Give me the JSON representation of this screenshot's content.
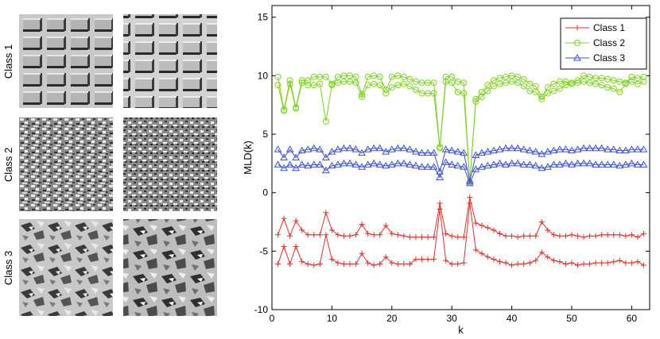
{
  "texture_panel": {
    "rows": [
      {
        "label": "Class 1",
        "pattern": "woven-grid"
      },
      {
        "label": "Class 2",
        "pattern": "fine-granular"
      },
      {
        "label": "Class 3",
        "pattern": "coarse-flakes"
      }
    ]
  },
  "chart_data": {
    "type": "line",
    "title": "",
    "xlabel": "k",
    "ylabel": "MLD(k)",
    "xlim": [
      0,
      63
    ],
    "ylim": [
      -10,
      16
    ],
    "xticks": [
      0,
      10,
      20,
      30,
      40,
      50,
      60
    ],
    "yticks": [
      -10,
      -5,
      0,
      5,
      10,
      15
    ],
    "grid": false,
    "legend_position": "top-right",
    "legend": [
      {
        "label": "Class 1",
        "color": "#e0302a",
        "marker": "plus"
      },
      {
        "label": "Class 2",
        "color": "#7ed321",
        "marker": "circle"
      },
      {
        "label": "Class 3",
        "color": "#3b4fd4",
        "marker": "triangle"
      }
    ],
    "x": [
      1,
      2,
      3,
      4,
      5,
      6,
      7,
      8,
      9,
      10,
      11,
      12,
      13,
      14,
      15,
      16,
      17,
      18,
      19,
      20,
      21,
      22,
      23,
      24,
      25,
      26,
      27,
      28,
      29,
      30,
      31,
      32,
      33,
      34,
      35,
      36,
      37,
      38,
      39,
      40,
      41,
      42,
      43,
      44,
      45,
      46,
      47,
      48,
      49,
      50,
      51,
      52,
      53,
      54,
      55,
      56,
      57,
      58,
      59,
      60,
      61,
      62
    ],
    "series": [
      {
        "name": "Class 1",
        "color": "#e0302a",
        "marker": "plus",
        "values": [
          -3.6,
          -2.2,
          -3.7,
          -2.4,
          -3.2,
          -3.6,
          -3.6,
          -3.6,
          -1.7,
          -3.2,
          -3.6,
          -3.7,
          -3.7,
          -3.6,
          -2.7,
          -3.5,
          -3.6,
          -3.6,
          -2.8,
          -3.5,
          -3.6,
          -3.7,
          -3.8,
          -3.8,
          -3.8,
          -3.8,
          -3.8,
          -0.9,
          -3.5,
          -3.7,
          -3.8,
          -3.8,
          -0.4,
          -2.6,
          -2.8,
          -3.0,
          -3.2,
          -3.5,
          -3.7,
          -3.7,
          -3.8,
          -3.7,
          -3.7,
          -3.7,
          -2.5,
          -3.2,
          -3.6,
          -3.7,
          -3.7,
          -3.6,
          -3.7,
          -3.8,
          -3.7,
          -3.7,
          -3.6,
          -3.6,
          -3.6,
          -3.6,
          -3.7,
          -3.6,
          -3.8,
          -3.5
        ]
      },
      {
        "name": "Class 1",
        "color": "#e0302a",
        "marker": "plus",
        "values": [
          -6.1,
          -4.6,
          -6.1,
          -4.6,
          -5.9,
          -6.1,
          -6.2,
          -6.1,
          -3.6,
          -5.7,
          -6.0,
          -6.1,
          -6.1,
          -6.1,
          -5.2,
          -6.0,
          -6.2,
          -6.1,
          -5.5,
          -6.0,
          -6.1,
          -6.1,
          -6.1,
          -5.7,
          -5.7,
          -5.7,
          -5.7,
          -1.4,
          -5.8,
          -6.1,
          -6.1,
          -6.0,
          -0.9,
          -4.9,
          -5.2,
          -5.5,
          -5.7,
          -5.9,
          -6.0,
          -6.2,
          -6.1,
          -6.1,
          -6.0,
          -5.8,
          -5.1,
          -5.5,
          -5.8,
          -5.9,
          -6.1,
          -6.0,
          -6.2,
          -6.1,
          -6.1,
          -6.0,
          -6.0,
          -6.0,
          -5.9,
          -5.8,
          -6.0,
          -6.0,
          -5.9,
          -6.2
        ]
      },
      {
        "name": "Class 2",
        "color": "#7ed321",
        "marker": "circle",
        "values": [
          9.9,
          7.1,
          9.6,
          7.3,
          9.6,
          9.6,
          9.9,
          9.9,
          9.9,
          9.3,
          9.9,
          10.0,
          10.0,
          9.9,
          8.4,
          9.9,
          10.0,
          9.9,
          8.8,
          9.9,
          10.0,
          9.9,
          9.7,
          9.5,
          9.4,
          9.4,
          9.4,
          3.9,
          9.9,
          9.9,
          9.5,
          9.4,
          0.9,
          8.0,
          8.6,
          9.2,
          9.6,
          9.8,
          9.9,
          10.0,
          9.9,
          9.7,
          9.3,
          9.1,
          8.2,
          9.0,
          9.3,
          9.5,
          9.5,
          9.4,
          9.6,
          10.0,
          9.9,
          9.8,
          9.8,
          9.7,
          9.6,
          9.5,
          9.4,
          9.9,
          9.8,
          9.9
        ]
      },
      {
        "name": "Class 2",
        "color": "#7ed321",
        "marker": "circle",
        "values": [
          9.2,
          7.0,
          9.3,
          7.2,
          9.4,
          9.2,
          9.2,
          9.3,
          6.1,
          9.2,
          9.4,
          9.5,
          9.5,
          9.4,
          8.2,
          9.2,
          9.3,
          9.2,
          8.5,
          9.0,
          9.2,
          9.3,
          9.1,
          8.8,
          8.5,
          8.5,
          8.5,
          3.8,
          9.5,
          9.4,
          8.6,
          8.5,
          0.9,
          7.8,
          8.2,
          8.7,
          9.1,
          9.3,
          9.4,
          9.5,
          9.4,
          9.1,
          8.7,
          8.6,
          8.0,
          8.5,
          8.7,
          8.9,
          9.2,
          9.3,
          9.4,
          9.5,
          9.4,
          9.3,
          9.2,
          9.0,
          8.9,
          8.6,
          9.3,
          9.5,
          9.3,
          9.5
        ]
      },
      {
        "name": "Class 3",
        "color": "#3b4fd4",
        "marker": "triangle",
        "values": [
          3.7,
          3.0,
          3.7,
          3.0,
          3.6,
          3.7,
          3.8,
          3.7,
          3.0,
          3.5,
          3.7,
          3.8,
          3.8,
          3.7,
          3.4,
          3.7,
          3.8,
          3.8,
          3.5,
          3.7,
          3.8,
          3.8,
          3.7,
          3.5,
          3.4,
          3.4,
          3.4,
          1.8,
          3.7,
          3.6,
          3.5,
          3.4,
          1.0,
          3.2,
          3.4,
          3.5,
          3.6,
          3.7,
          3.8,
          3.8,
          3.8,
          3.7,
          3.6,
          3.5,
          3.3,
          3.5,
          3.6,
          3.7,
          3.7,
          3.6,
          3.7,
          3.8,
          3.8,
          3.8,
          3.8,
          3.7,
          3.7,
          3.6,
          3.6,
          3.7,
          3.7,
          3.7
        ]
      },
      {
        "name": "Class 3",
        "color": "#3b4fd4",
        "marker": "triangle",
        "values": [
          2.4,
          2.1,
          2.4,
          2.1,
          2.4,
          2.3,
          2.4,
          2.4,
          1.9,
          2.3,
          2.4,
          2.5,
          2.5,
          2.4,
          2.2,
          2.4,
          2.5,
          2.4,
          2.3,
          2.4,
          2.5,
          2.5,
          2.4,
          2.3,
          2.2,
          2.2,
          2.2,
          1.3,
          2.6,
          2.4,
          2.3,
          2.2,
          0.8,
          2.0,
          2.2,
          2.3,
          2.4,
          2.5,
          2.4,
          2.5,
          2.5,
          2.4,
          2.4,
          2.3,
          2.1,
          2.2,
          2.4,
          2.4,
          2.5,
          2.4,
          2.5,
          2.5,
          2.5,
          2.4,
          2.4,
          2.4,
          2.4,
          2.3,
          2.4,
          2.5,
          2.4,
          2.4
        ]
      }
    ]
  }
}
